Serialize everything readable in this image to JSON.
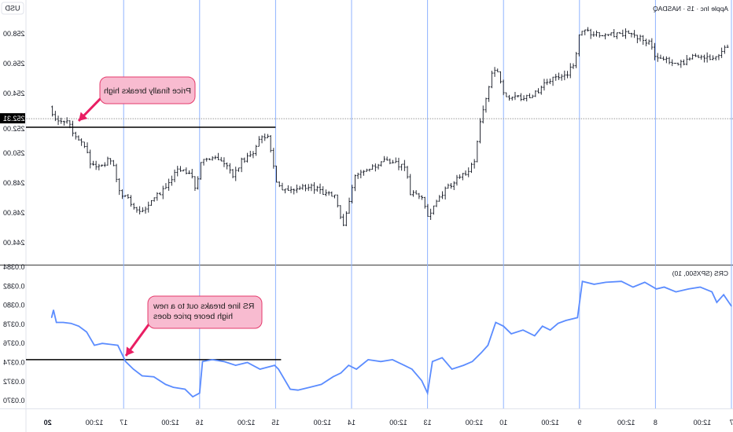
{
  "header": {
    "symbol": "Apple Inc · 15 · NASDAQ",
    "currency": "USD",
    "indicator": "CRS (SPX500, 10)"
  },
  "colors": {
    "bars": "#131722",
    "rs_line": "#5b8cff",
    "day_lines": "#8fb3ff",
    "callout_fill": "#f8bbd0",
    "callout_border": "#e5396b",
    "arrow": "#e91e63"
  },
  "chart_data": [
    {
      "type": "ohlc",
      "title": "Apple Inc · 15 · NASDAQ",
      "ylabel": "USD",
      "ylim": [
        243.5,
        260
      ],
      "y_ticks": [
        "244.00",
        "246.00",
        "248.00",
        "250.00",
        "252.00",
        "254.00",
        "256.00",
        "258.00"
      ],
      "last_price": "252.31",
      "x_ticks": [
        {
          "day": "7",
          "label": "7"
        },
        {
          "day": "7",
          "label": "12:00"
        },
        {
          "day": "8",
          "label": "8"
        },
        {
          "day": "8",
          "label": "12:00"
        },
        {
          "day": "9",
          "label": "9"
        },
        {
          "day": "9",
          "label": "12:00"
        },
        {
          "day": "10",
          "label": "10"
        },
        {
          "day": "10",
          "label": "12:00"
        },
        {
          "day": "13",
          "label": "13"
        },
        {
          "day": "13",
          "label": "12:00"
        },
        {
          "day": "14",
          "label": "14"
        },
        {
          "day": "14",
          "label": "12:00"
        },
        {
          "day": "15",
          "label": "15"
        },
        {
          "day": "15",
          "label": "12:00"
        },
        {
          "day": "16",
          "label": "16"
        },
        {
          "day": "16",
          "label": "12:00"
        },
        {
          "day": "17",
          "label": "17"
        },
        {
          "day": "17",
          "label": "12:00"
        },
        {
          "day": "20",
          "label": "20"
        }
      ],
      "days": [
        "7",
        "8",
        "9",
        "10",
        "13",
        "14",
        "15",
        "16",
        "17",
        "20"
      ],
      "close_path": [
        [
          "7",
          "09:50",
          257.1
        ],
        [
          "7",
          "10:50",
          256.3
        ],
        [
          "7",
          "11:50",
          256.6
        ],
        [
          "7",
          "12:50",
          256.3
        ],
        [
          "7",
          "13:50",
          255.9
        ],
        [
          "7",
          "14:50",
          256.2
        ],
        [
          "7",
          "15:55",
          256.6
        ],
        [
          "8",
          "09:45",
          257.4
        ],
        [
          "8",
          "10:25",
          257.7
        ],
        [
          "8",
          "11:25",
          258.05
        ],
        [
          "8",
          "12:25",
          257.95
        ],
        [
          "8",
          "13:45",
          257.95
        ],
        [
          "8",
          "15:05",
          258.15
        ],
        [
          "8",
          "15:45",
          258.25
        ],
        [
          "9",
          "09:40",
          256.0
        ],
        [
          "9",
          "10:20",
          255.3
        ],
        [
          "9",
          "11:20",
          255.0
        ],
        [
          "9",
          "12:20",
          254.6
        ],
        [
          "9",
          "13:20",
          253.7
        ],
        [
          "9",
          "14:40",
          253.7
        ],
        [
          "9",
          "15:40",
          253.9
        ],
        [
          "10",
          "09:50",
          255.5
        ],
        [
          "10",
          "10:10",
          255.8
        ],
        [
          "10",
          "10:50",
          253.4
        ],
        [
          "10",
          "11:10",
          252.4
        ],
        [
          "10",
          "11:40",
          249.7
        ],
        [
          "10",
          "12:10",
          248.9
        ],
        [
          "10",
          "13:15",
          248.2
        ],
        [
          "10",
          "14:15",
          247.6
        ],
        [
          "10",
          "15:15",
          246.3
        ],
        [
          "10",
          "15:45",
          245.8
        ],
        [
          "13",
          "09:45",
          247.1
        ],
        [
          "13",
          "10:45",
          247.4
        ],
        [
          "13",
          "11:05",
          249.2
        ],
        [
          "13",
          "11:45",
          249.2
        ],
        [
          "13",
          "12:45",
          249.5
        ],
        [
          "13",
          "13:45",
          249.2
        ],
        [
          "13",
          "14:45",
          248.9
        ],
        [
          "13",
          "15:30",
          248.4
        ],
        [
          "14",
          "09:40",
          246.1
        ],
        [
          "14",
          "10:00",
          245.0
        ],
        [
          "14",
          "10:40",
          247.1
        ],
        [
          "14",
          "11:40",
          247.4
        ],
        [
          "14",
          "12:40",
          247.7
        ],
        [
          "14",
          "13:40",
          247.8
        ],
        [
          "14",
          "14:40",
          247.6
        ],
        [
          "14",
          "15:30",
          247.7
        ],
        [
          "15",
          "09:30",
          249.2
        ],
        [
          "15",
          "09:50",
          251.3
        ],
        [
          "15",
          "10:30",
          251.05
        ],
        [
          "15",
          "10:50",
          250.5
        ],
        [
          "15",
          "11:30",
          249.7
        ],
        [
          "15",
          "12:10",
          249.5
        ],
        [
          "15",
          "12:50",
          248.4
        ],
        [
          "15",
          "13:30",
          249.2
        ],
        [
          "15",
          "14:35",
          249.7
        ],
        [
          "15",
          "15:35",
          249.7
        ],
        [
          "16",
          "09:35",
          247.6
        ],
        [
          "16",
          "09:50",
          248.4
        ],
        [
          "16",
          "10:30",
          248.7
        ],
        [
          "16",
          "11:10",
          248.9
        ],
        [
          "16",
          "11:55",
          247.9
        ],
        [
          "16",
          "12:35",
          247.4
        ],
        [
          "16",
          "13:15",
          246.8
        ],
        [
          "16",
          "13:55",
          246.1
        ],
        [
          "16",
          "14:35",
          246.3
        ],
        [
          "16",
          "15:15",
          246.8
        ],
        [
          "17",
          "09:35",
          247.4
        ],
        [
          "17",
          "10:05",
          249.2
        ],
        [
          "17",
          "10:40",
          249.5
        ],
        [
          "17",
          "11:20",
          249.0
        ],
        [
          "17",
          "12:00",
          249.2
        ],
        [
          "17",
          "12:40",
          250.5
        ],
        [
          "17",
          "13:20",
          251.05
        ],
        [
          "17",
          "14:00",
          252.1
        ],
        [
          "17",
          "14:40",
          252.1
        ],
        [
          "17",
          "15:20",
          252.6
        ],
        [
          "17",
          "15:40",
          253.2
        ]
      ],
      "resistance_level": 251.74,
      "resistance_from": [
        "15",
        "09:30"
      ],
      "annotation": "Price finally breaks high"
    },
    {
      "type": "line",
      "title": "CRS (SPX500, 10)",
      "ylim": [
        0.0369,
        0.0384
      ],
      "y_ticks": [
        "0.0370",
        "0.0372",
        "0.0374",
        "0.0376",
        "0.0378",
        "0.0380",
        "0.0382",
        "0.0384"
      ],
      "series": [
        {
          "values": [
            [
              "7",
              "09:30",
              0.03799
            ],
            [
              "7",
              "10:10",
              0.03811
            ],
            [
              "7",
              "10:45",
              0.03803
            ],
            [
              "7",
              "11:10",
              0.03814
            ],
            [
              "7",
              "12:10",
              0.03819
            ],
            [
              "7",
              "13:10",
              0.03817
            ],
            [
              "7",
              "14:15",
              0.03814
            ],
            [
              "7",
              "15:15",
              0.03819
            ],
            [
              "7",
              "15:55",
              0.03817
            ],
            [
              "8",
              "10:25",
              0.03824
            ],
            [
              "8",
              "11:25",
              0.03819
            ],
            [
              "8",
              "12:25",
              0.03825
            ],
            [
              "8",
              "13:45",
              0.03824
            ],
            [
              "8",
              "14:45",
              0.03822
            ],
            [
              "8",
              "15:45",
              0.03825
            ],
            [
              "9",
              "09:40",
              0.03787
            ],
            [
              "9",
              "10:40",
              0.03784
            ],
            [
              "9",
              "11:20",
              0.03781
            ],
            [
              "9",
              "12:00",
              0.03774
            ],
            [
              "9",
              "12:40",
              0.03778
            ],
            [
              "9",
              "13:20",
              0.03768
            ],
            [
              "9",
              "14:20",
              0.03774
            ],
            [
              "9",
              "15:20",
              0.0377
            ],
            [
              "10",
              "09:30",
              0.03778
            ],
            [
              "10",
              "10:10",
              0.03782
            ],
            [
              "10",
              "10:50",
              0.03758
            ],
            [
              "10",
              "11:25",
              0.0375
            ],
            [
              "10",
              "12:10",
              0.03741
            ],
            [
              "10",
              "12:55",
              0.03737
            ],
            [
              "10",
              "13:55",
              0.03733
            ],
            [
              "10",
              "14:45",
              0.03745
            ],
            [
              "10",
              "15:35",
              0.03741
            ],
            [
              "13",
              "09:30",
              0.03708
            ],
            [
              "13",
              "10:00",
              0.03721
            ],
            [
              "13",
              "10:50",
              0.03733
            ],
            [
              "13",
              "11:30",
              0.03737
            ],
            [
              "13",
              "12:30",
              0.03743
            ],
            [
              "13",
              "13:30",
              0.03741
            ],
            [
              "13",
              "14:35",
              0.03743
            ],
            [
              "13",
              "15:35",
              0.03733
            ],
            [
              "14",
              "09:45",
              0.03737
            ],
            [
              "14",
              "10:25",
              0.03729
            ],
            [
              "14",
              "11:05",
              0.03725
            ],
            [
              "14",
              "12:05",
              0.03717
            ],
            [
              "14",
              "13:05",
              0.03714
            ],
            [
              "14",
              "14:05",
              0.03711
            ],
            [
              "14",
              "14:45",
              0.03712
            ],
            [
              "14",
              "15:45",
              0.03733
            ],
            [
              "15",
              "09:35",
              0.03737
            ],
            [
              "15",
              "10:50",
              0.03733
            ],
            [
              "15",
              "11:55",
              0.0374
            ],
            [
              "15",
              "12:55",
              0.03737
            ],
            [
              "15",
              "13:55",
              0.03741
            ],
            [
              "15",
              "14:55",
              0.03743
            ],
            [
              "15",
              "15:45",
              0.03741
            ],
            [
              "16",
              "09:30",
              0.03708
            ],
            [
              "16",
              "10:05",
              0.03704
            ],
            [
              "16",
              "10:45",
              0.03712
            ],
            [
              "16",
              "11:45",
              0.03714
            ],
            [
              "16",
              "12:25",
              0.03717
            ],
            [
              "16",
              "13:25",
              0.03725
            ],
            [
              "16",
              "14:25",
              0.03726
            ],
            [
              "16",
              "15:10",
              0.03733
            ],
            [
              "16",
              "15:50",
              0.03741
            ],
            [
              "17",
              "10:00",
              0.03758
            ],
            [
              "17",
              "10:40",
              0.03759
            ],
            [
              "17",
              "11:20",
              0.0376
            ],
            [
              "17",
              "12:00",
              0.03758
            ],
            [
              "17",
              "12:40",
              0.03772
            ],
            [
              "17",
              "13:20",
              0.03778
            ],
            [
              "17",
              "14:00",
              0.03781
            ],
            [
              "17",
              "14:40",
              0.03782
            ],
            [
              "17",
              "15:15",
              0.03782
            ],
            [
              "17",
              "15:30",
              0.03795
            ],
            [
              "17",
              "15:40",
              0.03787
            ]
          ]
        }
      ],
      "resistance_level": 0.03743,
      "resistance_from": [
        "15",
        "09:30"
      ],
      "annotation": "RS line breaks out to a new high beore price does"
    }
  ]
}
